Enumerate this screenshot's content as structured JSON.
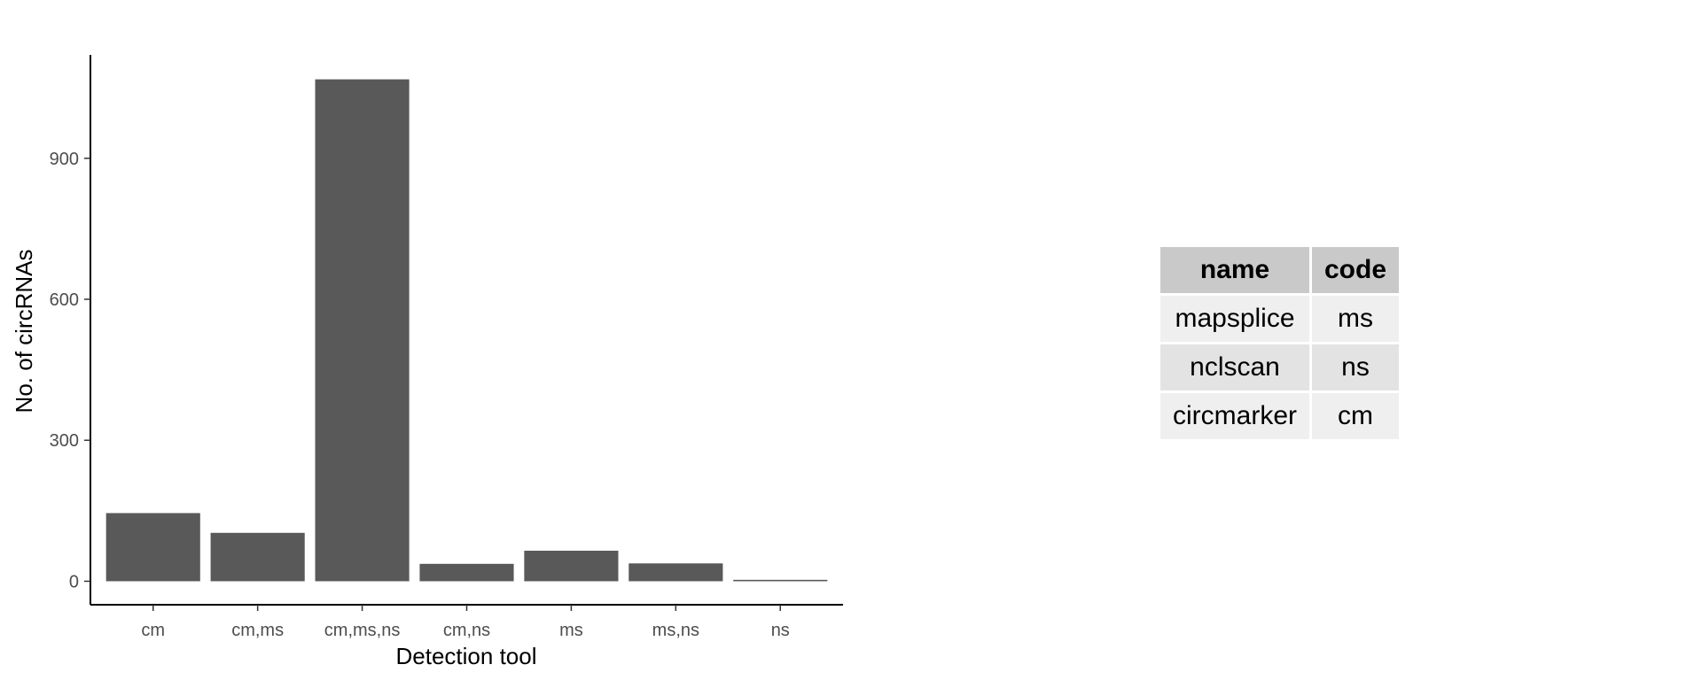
{
  "chart_data": {
    "type": "bar",
    "categories": [
      "cm",
      "cm,ms",
      "cm,ms,ns",
      "cm,ns",
      "ms",
      "ms,ns",
      "ns"
    ],
    "values": [
      145,
      103,
      1068,
      37,
      65,
      38,
      3
    ],
    "xlabel": "Detection tool",
    "ylabel": "No. of circRNAs",
    "ylim": [
      -50,
      1120
    ],
    "yticks": [
      0,
      300,
      600,
      900
    ],
    "bar_color": "#595959",
    "grid": false
  },
  "table": {
    "headers": [
      "name",
      "code"
    ],
    "rows": [
      [
        "mapsplice",
        "ms"
      ],
      [
        "nclscan",
        "ns"
      ],
      [
        "circmarker",
        "cm"
      ]
    ]
  }
}
